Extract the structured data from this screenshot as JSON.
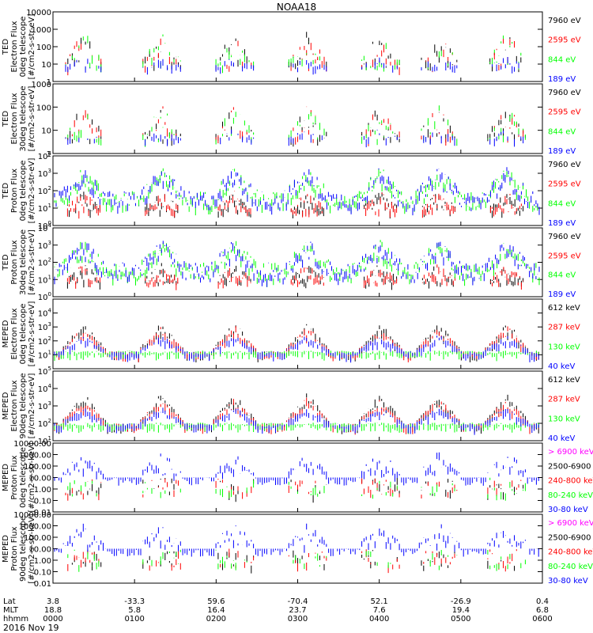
{
  "title": "NOAA18",
  "date_label": "2016 Nov 19",
  "bottom_axis": {
    "row_labels": [
      "Lat",
      "MLT",
      "hhmm"
    ],
    "columns": [
      {
        "lat": "3.8",
        "mlt": "18.8",
        "hhmm": "0000"
      },
      {
        "lat": "-33.3",
        "mlt": "5.8",
        "hhmm": "0100"
      },
      {
        "lat": "59.6",
        "mlt": "16.4",
        "hhmm": "0200"
      },
      {
        "lat": "-70.4",
        "mlt": "23.7",
        "hhmm": "0300"
      },
      {
        "lat": "52.1",
        "mlt": "7.6",
        "hhmm": "0400"
      },
      {
        "lat": "-26.9",
        "mlt": "19.4",
        "hhmm": "0500"
      },
      {
        "lat": "0.4",
        "mlt": "6.8",
        "hhmm": "0600"
      }
    ]
  },
  "colors": {
    "black": "#000000",
    "red": "#ff0000",
    "green": "#00ff00",
    "blue": "#0000ff",
    "magenta": "#ff00ff"
  },
  "chart_data": [
    {
      "type": "line",
      "ylabel": [
        "TED",
        "Electron Flux",
        "0deg telescope",
        "[#/cm2-s-str-eV]"
      ],
      "yscale": "log",
      "ylim": [
        1,
        10000
      ],
      "ytick_labels": [
        "1",
        "10",
        "100",
        "1000",
        "10000"
      ],
      "xlim": [
        "0000",
        "0600"
      ],
      "series": [
        {
          "name": "7960 eV",
          "color": "#000000"
        },
        {
          "name": "2595 eV",
          "color": "#ff0000"
        },
        {
          "name": "844 eV",
          "color": "#00ff00"
        },
        {
          "name": "189 eV",
          "color": "#0000ff"
        }
      ]
    },
    {
      "type": "line",
      "ylabel": [
        "TED",
        "Electron Flux",
        "30deg telescope",
        "[#/cm2-s-str-eV]"
      ],
      "yscale": "log",
      "ylim": [
        1,
        1000
      ],
      "ytick_labels": [
        "1",
        "10",
        "100",
        "1000"
      ],
      "xlim": [
        "0000",
        "0600"
      ],
      "series": [
        {
          "name": "7960 eV",
          "color": "#000000"
        },
        {
          "name": "2595 eV",
          "color": "#ff0000"
        },
        {
          "name": "844 eV",
          "color": "#00ff00"
        },
        {
          "name": "189 eV",
          "color": "#0000ff"
        }
      ]
    },
    {
      "type": "line",
      "ylabel": [
        "TED",
        "Proton Flux",
        "0deg telescope",
        "[#/cm2-s-str-eV]"
      ],
      "yscale": "log",
      "ylim": [
        1,
        10000
      ],
      "ytick_labels": [
        "10^0",
        "10^1",
        "10^2",
        "10^3",
        "10^4"
      ],
      "xlim": [
        "0000",
        "0600"
      ],
      "series": [
        {
          "name": "7960 eV",
          "color": "#000000"
        },
        {
          "name": "2595 eV",
          "color": "#ff0000"
        },
        {
          "name": "844 eV",
          "color": "#00ff00"
        },
        {
          "name": "189 eV",
          "color": "#0000ff"
        }
      ]
    },
    {
      "type": "line",
      "ylabel": [
        "TED",
        "Proton Flux",
        "30deg telescope",
        "[#/cm2-s-str-eV]"
      ],
      "yscale": "log",
      "ylim": [
        1,
        10000
      ],
      "ytick_labels": [
        "10^0",
        "10^1",
        "10^2",
        "10^3",
        "10^4"
      ],
      "xlim": [
        "0000",
        "0600"
      ],
      "series": [
        {
          "name": "7960 eV",
          "color": "#000000"
        },
        {
          "name": "2595 eV",
          "color": "#ff0000"
        },
        {
          "name": "844 eV",
          "color": "#00ff00"
        },
        {
          "name": "189 eV",
          "color": "#0000ff"
        }
      ]
    },
    {
      "type": "line",
      "ylabel": [
        "MEPED",
        "Electron Flux",
        "0deg telescope",
        "[#/cm2-s-str-eV]"
      ],
      "yscale": "log",
      "ylim": [
        1,
        100000
      ],
      "ytick_labels": [
        "10^1",
        "10^2",
        "10^3",
        "10^4"
      ],
      "xlim": [
        "0000",
        "0600"
      ],
      "series": [
        {
          "name": "612 keV",
          "color": "#000000"
        },
        {
          "name": "287 keV",
          "color": "#ff0000"
        },
        {
          "name": "130 keV",
          "color": "#00ff00"
        },
        {
          "name": "40 keV",
          "color": "#0000ff"
        }
      ]
    },
    {
      "type": "line",
      "ylabel": [
        "MEPED",
        "Electron Flux",
        "90deg telescope",
        "[#/cm2-s-str-eV]"
      ],
      "yscale": "log",
      "ylim": [
        10,
        100000
      ],
      "ytick_labels": [
        "10^1",
        "10^2",
        "10^3",
        "10^4",
        "10^5"
      ],
      "xlim": [
        "0000",
        "0600"
      ],
      "series": [
        {
          "name": "612 keV",
          "color": "#000000"
        },
        {
          "name": "287 keV",
          "color": "#ff0000"
        },
        {
          "name": "130 keV",
          "color": "#00ff00"
        },
        {
          "name": "40 keV",
          "color": "#0000ff"
        }
      ]
    },
    {
      "type": "line",
      "ylabel": [
        "MEPED",
        "Proton Flux",
        "0deg telescope",
        "[#/cm2-s-str-keV]"
      ],
      "yscale": "log",
      "ylim": [
        0.01,
        10000
      ],
      "ytick_labels": [
        "0.01",
        "0.10",
        "1.00",
        "10.00",
        "100.00",
        "1000.00",
        "10000.00"
      ],
      "xlim": [
        "0000",
        "0600"
      ],
      "series": [
        {
          "name": "> 6900 keV",
          "color": "#ff00ff"
        },
        {
          "name": "2500-6900",
          "color": "#000000"
        },
        {
          "name": "240-800 keV",
          "color": "#ff0000"
        },
        {
          "name": "80-240 keV",
          "color": "#00ff00"
        },
        {
          "name": "30-80 keV",
          "color": "#0000ff"
        }
      ]
    },
    {
      "type": "line",
      "ylabel": [
        "MEPED",
        "Proton Flux",
        "90deg telescope",
        "[#/cm2-s-str-keV]"
      ],
      "yscale": "log",
      "ylim": [
        0.01,
        10000
      ],
      "ytick_labels": [
        "0.01",
        "0.10",
        "1.00",
        "10.00",
        "100.00",
        "1000.00",
        "10000.00"
      ],
      "xlim": [
        "0000",
        "0600"
      ],
      "series": [
        {
          "name": "> 6900 keV",
          "color": "#ff00ff"
        },
        {
          "name": "2500-6900",
          "color": "#000000"
        },
        {
          "name": "240-800 keV",
          "color": "#ff0000"
        },
        {
          "name": "80-240 keV",
          "color": "#00ff00"
        },
        {
          "name": "30-80 keV",
          "color": "#0000ff"
        }
      ]
    }
  ]
}
